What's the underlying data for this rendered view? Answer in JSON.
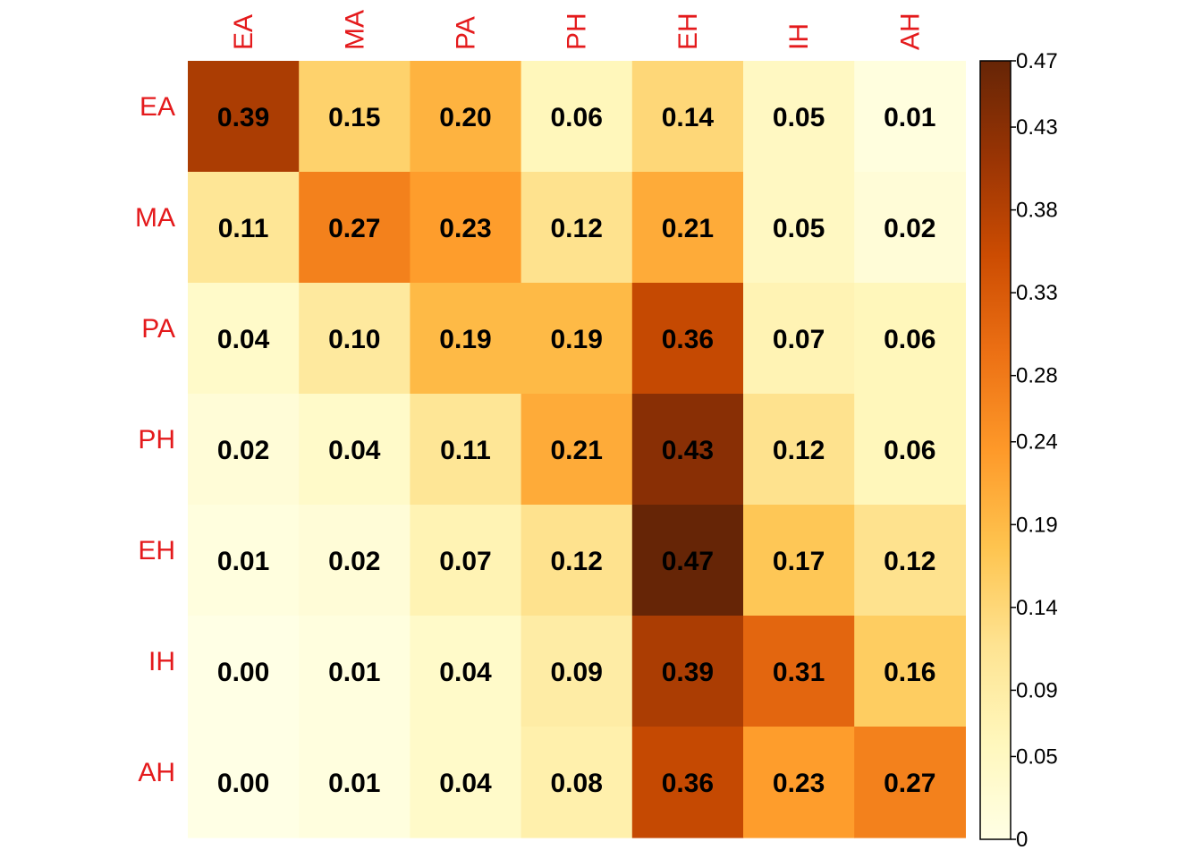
{
  "chart_data": {
    "type": "heatmap",
    "title": "",
    "xlabel": "",
    "ylabel": "",
    "columns": [
      "EA",
      "MA",
      "PA",
      "PH",
      "EH",
      "IH",
      "AH"
    ],
    "rows": [
      "EA",
      "MA",
      "PA",
      "PH",
      "EH",
      "IH",
      "AH"
    ],
    "values": [
      [
        0.39,
        0.15,
        0.2,
        0.06,
        0.14,
        0.05,
        0.01
      ],
      [
        0.11,
        0.27,
        0.23,
        0.12,
        0.21,
        0.05,
        0.02
      ],
      [
        0.04,
        0.1,
        0.19,
        0.19,
        0.36,
        0.07,
        0.06
      ],
      [
        0.02,
        0.04,
        0.11,
        0.21,
        0.43,
        0.12,
        0.06
      ],
      [
        0.01,
        0.02,
        0.07,
        0.12,
        0.47,
        0.17,
        0.12
      ],
      [
        0.0,
        0.01,
        0.04,
        0.09,
        0.39,
        0.31,
        0.16
      ],
      [
        0.0,
        0.01,
        0.04,
        0.08,
        0.36,
        0.23,
        0.27
      ]
    ],
    "value_range": [
      0,
      0.47
    ],
    "colorbar": {
      "ticks": [
        0,
        0.05,
        0.09,
        0.14,
        0.19,
        0.24,
        0.28,
        0.33,
        0.38,
        0.43,
        0.47
      ],
      "tick_labels": [
        "0",
        "0.05",
        "0.09",
        "0.14",
        "0.19",
        "0.24",
        "0.28",
        "0.33",
        "0.38",
        "0.43",
        "0.47"
      ],
      "placement": "right"
    },
    "colors": {
      "scale": [
        "#FFFFE5",
        "#FFF7BC",
        "#FEE391",
        "#FEC44F",
        "#FE9929",
        "#EC7014",
        "#CC4C02",
        "#993404",
        "#662506"
      ],
      "axis_label_color": "#e41a1c",
      "cell_text_color": "#000000"
    }
  }
}
